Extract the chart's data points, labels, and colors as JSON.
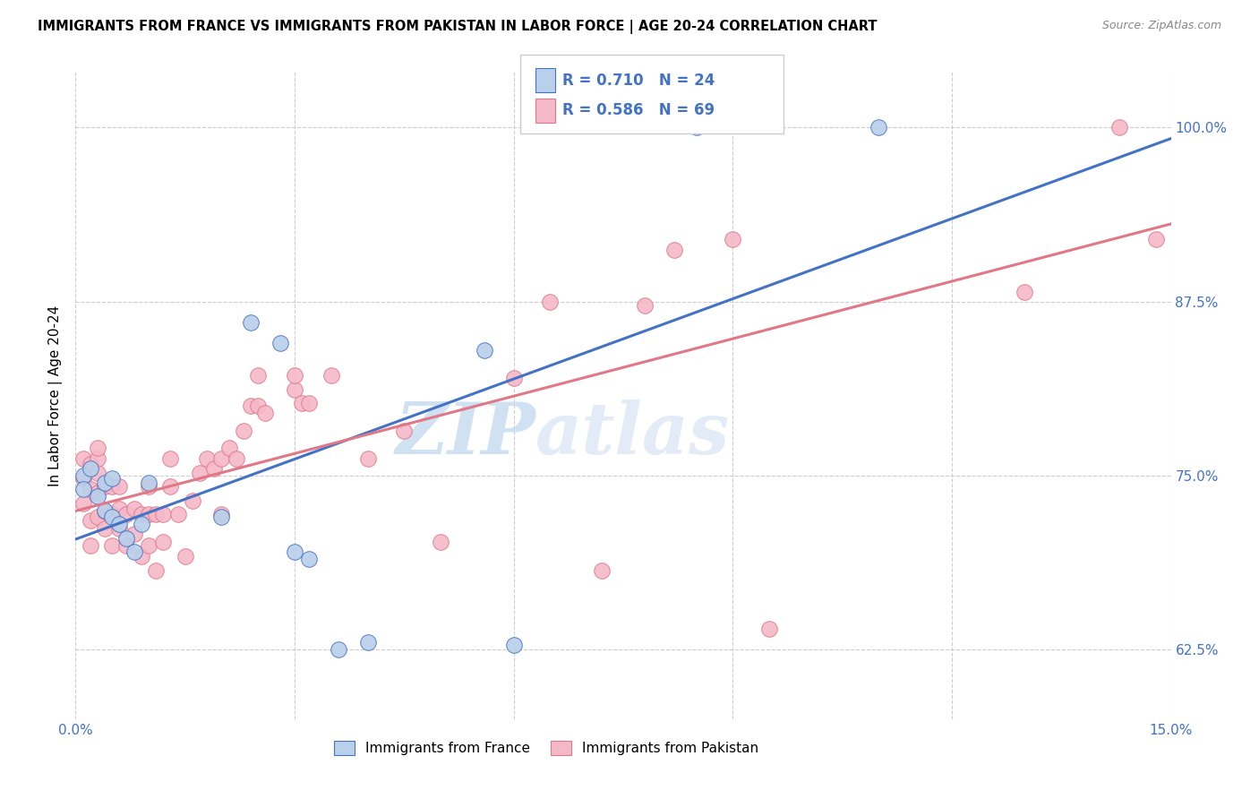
{
  "title": "IMMIGRANTS FROM FRANCE VS IMMIGRANTS FROM PAKISTAN IN LABOR FORCE | AGE 20-24 CORRELATION CHART",
  "source": "Source: ZipAtlas.com",
  "ylabel": "In Labor Force | Age 20-24",
  "xlim": [
    0.0,
    0.15
  ],
  "ylim": [
    0.575,
    1.04
  ],
  "x_ticks": [
    0.0,
    0.03,
    0.06,
    0.09,
    0.12,
    0.15
  ],
  "x_tick_labels": [
    "0.0%",
    "",
    "",
    "",
    "",
    "15.0%"
  ],
  "y_ticks": [
    0.625,
    0.75,
    0.875,
    1.0
  ],
  "y_tick_labels": [
    "62.5%",
    "75.0%",
    "87.5%",
    "100.0%"
  ],
  "france_color": "#b8d0ea",
  "pakistan_color": "#f5b8c8",
  "france_line_color": "#4472c4",
  "pakistan_line_color": "#e07888",
  "france_R": 0.71,
  "france_N": 24,
  "pakistan_R": 0.586,
  "pakistan_N": 69,
  "watermark_zip": "ZIP",
  "watermark_atlas": "atlas",
  "france_x": [
    0.001,
    0.001,
    0.002,
    0.003,
    0.004,
    0.004,
    0.005,
    0.005,
    0.006,
    0.007,
    0.008,
    0.009,
    0.01,
    0.02,
    0.024,
    0.028,
    0.03,
    0.032,
    0.036,
    0.04,
    0.056,
    0.06,
    0.085,
    0.11
  ],
  "france_y": [
    0.75,
    0.74,
    0.755,
    0.735,
    0.725,
    0.745,
    0.72,
    0.748,
    0.715,
    0.705,
    0.695,
    0.715,
    0.745,
    0.72,
    0.86,
    0.845,
    0.695,
    0.69,
    0.625,
    0.63,
    0.84,
    0.628,
    1.0,
    1.0
  ],
  "pakistan_x": [
    0.001,
    0.001,
    0.001,
    0.002,
    0.002,
    0.002,
    0.002,
    0.003,
    0.003,
    0.003,
    0.003,
    0.003,
    0.004,
    0.004,
    0.004,
    0.005,
    0.005,
    0.005,
    0.006,
    0.006,
    0.006,
    0.007,
    0.007,
    0.008,
    0.008,
    0.009,
    0.009,
    0.01,
    0.01,
    0.01,
    0.011,
    0.011,
    0.012,
    0.012,
    0.013,
    0.013,
    0.014,
    0.015,
    0.016,
    0.017,
    0.018,
    0.019,
    0.02,
    0.02,
    0.021,
    0.022,
    0.023,
    0.024,
    0.025,
    0.025,
    0.026,
    0.03,
    0.03,
    0.031,
    0.032,
    0.035,
    0.04,
    0.045,
    0.05,
    0.06,
    0.065,
    0.072,
    0.078,
    0.082,
    0.09,
    0.095,
    0.13,
    0.143,
    0.148
  ],
  "pakistan_y": [
    0.73,
    0.748,
    0.762,
    0.7,
    0.718,
    0.74,
    0.758,
    0.72,
    0.738,
    0.752,
    0.762,
    0.77,
    0.712,
    0.724,
    0.742,
    0.7,
    0.722,
    0.742,
    0.712,
    0.726,
    0.742,
    0.7,
    0.722,
    0.708,
    0.726,
    0.692,
    0.722,
    0.7,
    0.722,
    0.742,
    0.682,
    0.722,
    0.702,
    0.722,
    0.742,
    0.762,
    0.722,
    0.692,
    0.732,
    0.752,
    0.762,
    0.755,
    0.722,
    0.762,
    0.77,
    0.762,
    0.782,
    0.8,
    0.8,
    0.822,
    0.795,
    0.812,
    0.822,
    0.802,
    0.802,
    0.822,
    0.762,
    0.782,
    0.702,
    0.82,
    0.875,
    0.682,
    0.872,
    0.912,
    0.92,
    0.64,
    0.882,
    1.0,
    0.92
  ]
}
